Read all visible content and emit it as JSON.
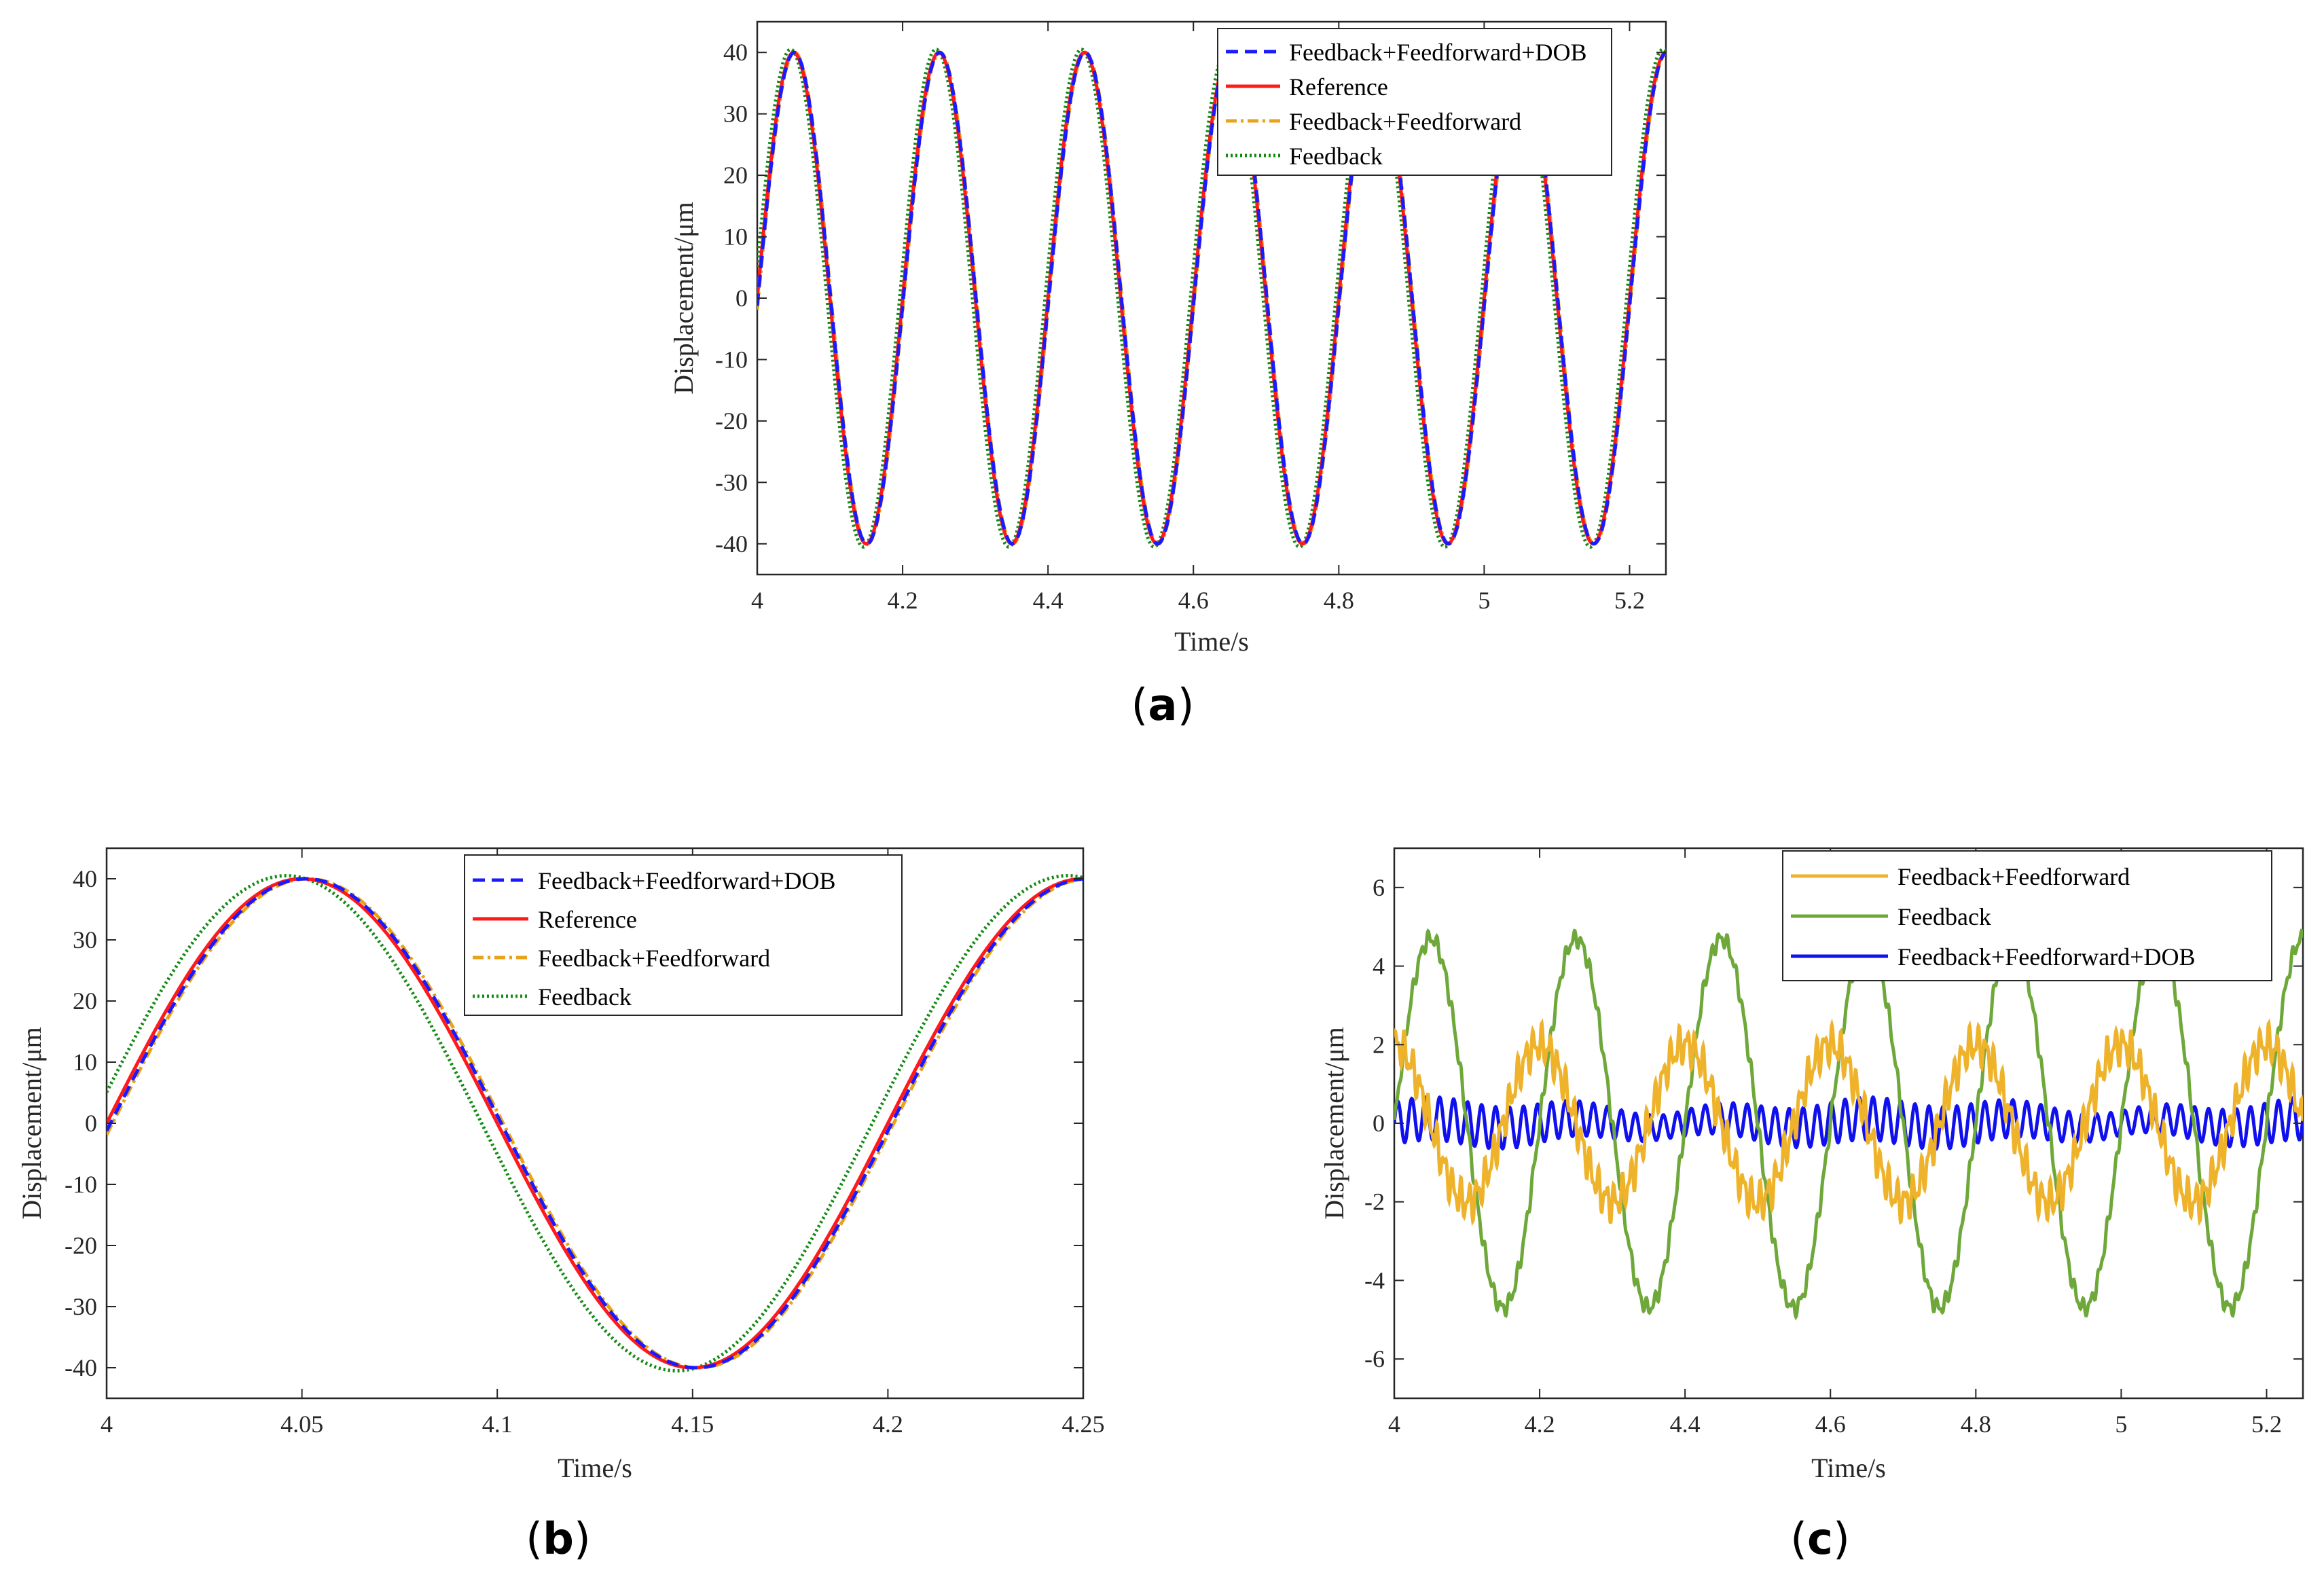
{
  "figure": {
    "colors": {
      "dob_blue": "#1a1aff",
      "reference_red": "#ff1a1a",
      "ff_orange": "#e8a317",
      "fb_green": "#138a13",
      "c_fb_green": "#6fa83a",
      "c_ff_orange": "#eeb32a",
      "c_dob_blue": "#1010ee",
      "axis": "#262626"
    },
    "panels": [
      {
        "id": "a",
        "label_open": "(",
        "label_letter": "a",
        "label_close": ")",
        "xlabel": "Time/s",
        "ylabel": "Displacement/μm",
        "legend": [
          "Feedback+Feedforward+DOB",
          "Reference",
          "Feedback+Feedforward",
          "Feedback"
        ]
      },
      {
        "id": "b",
        "label_open": "(",
        "label_letter": "b",
        "label_close": ")",
        "xlabel": "Time/s",
        "ylabel": "Displacement/μm",
        "legend": [
          "Feedback+Feedforward+DOB",
          "Reference",
          "Feedback+Feedforward",
          "Feedback"
        ]
      },
      {
        "id": "c",
        "label_open": "(",
        "label_letter": "c",
        "label_close": ")",
        "xlabel": "Time/s",
        "ylabel": "Displacement/μm",
        "legend": [
          "Feedback+Feedforward",
          "Feedback",
          "Feedback+Feedforward+DOB"
        ]
      }
    ]
  },
  "chart_data": [
    {
      "panel": "a",
      "type": "line",
      "title": "",
      "xlabel": "Time/s",
      "ylabel": "Displacement/μm",
      "xlim": [
        4,
        5.25
      ],
      "ylim": [
        -45,
        45
      ],
      "xticks": [
        4,
        4.2,
        4.4,
        4.6,
        4.8,
        5,
        5.2
      ],
      "xtick_labels": [
        "4",
        "4.2",
        "4.4",
        "4.6",
        "4.8",
        "5",
        "5.2"
      ],
      "yticks": [
        -40,
        -30,
        -20,
        -10,
        0,
        10,
        20,
        30,
        40
      ],
      "ytick_labels": [
        "-40",
        "-30",
        "-20",
        "-10",
        "0",
        "10",
        "20",
        "30",
        "40"
      ],
      "legend_position": "top-right",
      "series": [
        {
          "name": "Feedback+Feedforward+DOB",
          "style": "dashed",
          "color": "#1a1aff",
          "model": "sine",
          "amplitude": 40,
          "frequency_hz": 5,
          "lag_s": 0.001,
          "offset": 0
        },
        {
          "name": "Reference",
          "style": "solid",
          "color": "#ff1a1a",
          "model": "sine",
          "amplitude": 40,
          "frequency_hz": 5,
          "lag_s": 0.0,
          "offset": 0
        },
        {
          "name": "Feedback+Feedforward",
          "style": "dashdot",
          "color": "#e8a317",
          "model": "sine",
          "amplitude": 40,
          "frequency_hz": 5,
          "lag_s": 0.0015,
          "offset": 0
        },
        {
          "name": "Feedback",
          "style": "dotted",
          "color": "#138a13",
          "model": "sine",
          "amplitude": 40.5,
          "frequency_hz": 5,
          "lag_s": -0.004,
          "offset": 0
        }
      ]
    },
    {
      "panel": "b",
      "type": "line",
      "title": "",
      "xlabel": "Time/s",
      "ylabel": "Displacement/μm",
      "xlim": [
        4,
        4.25
      ],
      "ylim": [
        -45,
        45
      ],
      "xticks": [
        4,
        4.05,
        4.1,
        4.15,
        4.2,
        4.25
      ],
      "xtick_labels": [
        "4",
        "4.05",
        "4.1",
        "4.15",
        "4.2",
        "4.25"
      ],
      "yticks": [
        -40,
        -30,
        -20,
        -10,
        0,
        10,
        20,
        30,
        40
      ],
      "ytick_labels": [
        "-40",
        "-30",
        "-20",
        "-10",
        "0",
        "10",
        "20",
        "30",
        "40"
      ],
      "legend_position": "top-right",
      "series": [
        {
          "name": "Feedback+Feedforward+DOB",
          "style": "dashed",
          "color": "#1a1aff",
          "model": "sine",
          "amplitude": 40,
          "frequency_hz": 5,
          "lag_s": 0.001,
          "offset": 0
        },
        {
          "name": "Reference",
          "style": "solid",
          "color": "#ff1a1a",
          "model": "sine",
          "amplitude": 40,
          "frequency_hz": 5,
          "lag_s": 0.0,
          "offset": 0
        },
        {
          "name": "Feedback+Feedforward",
          "style": "dashdot",
          "color": "#e8a317",
          "model": "sine",
          "amplitude": 40,
          "frequency_hz": 5,
          "lag_s": 0.0015,
          "offset": 0
        },
        {
          "name": "Feedback",
          "style": "dotted",
          "color": "#138a13",
          "model": "sine",
          "amplitude": 40.5,
          "frequency_hz": 5,
          "lag_s": -0.004,
          "offset": 0
        }
      ]
    },
    {
      "panel": "c",
      "type": "line",
      "title": "",
      "xlabel": "Time/s",
      "ylabel": "Displacement/μm",
      "xlim": [
        4,
        5.25
      ],
      "ylim": [
        -7,
        7
      ],
      "xticks": [
        4,
        4.2,
        4.4,
        4.6,
        4.8,
        5,
        5.2
      ],
      "xtick_labels": [
        "4",
        "4.2",
        "4.4",
        "4.6",
        "4.8",
        "5",
        "5.2"
      ],
      "yticks": [
        -6,
        -4,
        -2,
        0,
        2,
        4,
        6
      ],
      "ytick_labels": [
        "-6",
        "-4",
        "-2",
        "0",
        "2",
        "4",
        "6"
      ],
      "legend_position": "top-right",
      "series": [
        {
          "name": "Feedback+Feedforward",
          "style": "solid",
          "color": "#eeb32a",
          "model": "error-wave",
          "amplitude": 2.0,
          "frequency_hz": 5,
          "phase_zero_t": 4.0,
          "ripple_amp": 0.35,
          "ripple_hz": 90
        },
        {
          "name": "Feedback",
          "style": "solid",
          "color": "#6fa83a",
          "model": "error-wave",
          "amplitude": 4.7,
          "frequency_hz": 5,
          "phase_zero_t": 4.05,
          "ripple_amp": 0.15,
          "ripple_hz": 90
        },
        {
          "name": "Feedback+Feedforward+DOB",
          "style": "solid",
          "color": "#1010ee",
          "model": "oscillation",
          "amplitude": 0.45,
          "frequency_hz": 5,
          "ripple_amp": 0.55,
          "ripple_hz": 52
        }
      ]
    }
  ]
}
